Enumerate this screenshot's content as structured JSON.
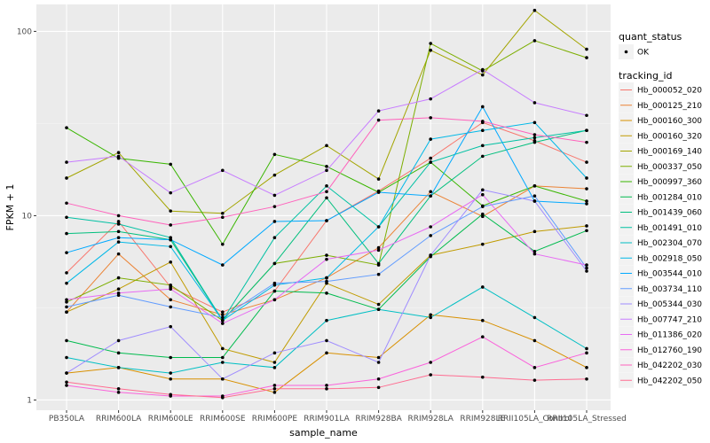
{
  "chart_data": {
    "type": "line",
    "xlabel": "sample_name",
    "ylabel": "FPKM + 1",
    "y_scale": "log10",
    "ylim": [
      0.88,
      140
    ],
    "y_ticks": [
      1,
      10,
      100
    ],
    "y_tick_labels": [
      "1",
      "10",
      "100"
    ],
    "grid": true,
    "background": "#ebebeb",
    "categories": [
      "PB350LA",
      "RRIM600LA",
      "RRIM600LE",
      "RRIM600SE",
      "RRIM600PE",
      "RRIM901LA",
      "RRIM928BA",
      "RRIM928LA",
      "RRIM928LE",
      "RRII105LA_Control",
      "RRII105LA_Stressed"
    ],
    "x_tick_labels": [
      "PB350LA",
      "RRIM600LA",
      "RRIM600LE",
      "RRIM600SE",
      "RRIM600PE",
      "RRIM901LA",
      "RRIM928BA",
      "RRIM928LA",
      "RRIM928LE",
      "RRII105LA_Control",
      "RRII105LA_Stressed"
    ],
    "legend_position": "right",
    "legend": {
      "status_title": "quant_status",
      "status_entries": [
        "OK"
      ],
      "series_title": "tracking_id"
    },
    "series": [
      {
        "name": "Hb_000052_020",
        "color": "#F8766D",
        "values": [
          4.9,
          9.3,
          4.1,
          3.0,
          3.9,
          9.4,
          13.6,
          20.5,
          32.0,
          25.5,
          19.5
        ]
      },
      {
        "name": "Hb_000125_210",
        "color": "#EB8335",
        "values": [
          3.0,
          6.2,
          3.5,
          2.9,
          3.5,
          4.6,
          6.7,
          13.5,
          9.9,
          14.5,
          14.0
        ]
      },
      {
        "name": "Hb_000160_300",
        "color": "#D89000",
        "values": [
          1.4,
          1.5,
          1.3,
          1.3,
          1.1,
          1.8,
          1.7,
          2.9,
          2.7,
          2.1,
          1.5
        ]
      },
      {
        "name": "Hb_000160_320",
        "color": "#C09B00",
        "values": [
          3.0,
          4.0,
          5.6,
          1.9,
          1.6,
          4.3,
          3.3,
          6.1,
          7.0,
          8.2,
          8.8
        ]
      },
      {
        "name": "Hb_000169_140",
        "color": "#A3A500",
        "values": [
          16.0,
          22.0,
          10.6,
          10.3,
          16.6,
          24.0,
          15.8,
          79.0,
          58.0,
          130.0,
          80.0
        ]
      },
      {
        "name": "Hb_000337_050",
        "color": "#7CAE00",
        "values": [
          3.4,
          4.6,
          4.2,
          2.7,
          5.5,
          6.1,
          5.4,
          86.0,
          61.0,
          89.0,
          72.0
        ]
      },
      {
        "name": "Hb_000997_360",
        "color": "#39B600",
        "values": [
          30.0,
          20.5,
          19.0,
          7.0,
          21.5,
          18.5,
          13.4,
          19.5,
          11.3,
          14.5,
          12.0
        ]
      },
      {
        "name": "Hb_001284_010",
        "color": "#00BB4E",
        "values": [
          2.1,
          1.8,
          1.7,
          1.7,
          3.9,
          3.8,
          3.1,
          6.0,
          10.2,
          6.4,
          8.3
        ]
      },
      {
        "name": "Hb_001439_060",
        "color": "#00BF7D",
        "values": [
          8.0,
          8.2,
          7.4,
          2.7,
          5.5,
          12.5,
          5.5,
          12.8,
          21.0,
          25.0,
          29.0
        ]
      },
      {
        "name": "Hb_001491_010",
        "color": "#00C1A3",
        "values": [
          9.8,
          9.0,
          7.6,
          2.7,
          7.6,
          14.5,
          8.7,
          19.5,
          24.0,
          26.5,
          29.0
        ]
      },
      {
        "name": "Hb_002304_070",
        "color": "#00BFC4",
        "values": [
          1.7,
          1.5,
          1.4,
          1.6,
          1.5,
          2.7,
          3.1,
          2.8,
          4.1,
          2.8,
          1.9
        ]
      },
      {
        "name": "Hb_002918_050",
        "color": "#00B8E7",
        "values": [
          4.3,
          7.2,
          6.8,
          2.7,
          4.2,
          4.6,
          8.7,
          26.0,
          29.0,
          32.0,
          16.0
        ]
      },
      {
        "name": "Hb_003544_010",
        "color": "#00A9FF",
        "values": [
          6.3,
          7.6,
          7.4,
          5.4,
          9.3,
          9.4,
          13.4,
          12.8,
          39.0,
          12.0,
          11.6
        ]
      },
      {
        "name": "Hb_003734_110",
        "color": "#619CFF",
        "values": [
          3.2,
          3.7,
          3.2,
          2.8,
          4.3,
          4.4,
          4.8,
          7.8,
          11.2,
          12.8,
          5.2
        ]
      },
      {
        "name": "Hb_005344_030",
        "color": "#9F8CFF",
        "values": [
          1.4,
          2.1,
          2.5,
          1.3,
          1.8,
          2.1,
          1.6,
          6.1,
          13.8,
          12.0,
          5.0
        ]
      },
      {
        "name": "Hb_007747_210",
        "color": "#C77CFF",
        "values": [
          19.5,
          21.0,
          13.3,
          17.6,
          12.9,
          17.6,
          37.0,
          43.0,
          62.0,
          41.0,
          35.0
        ]
      },
      {
        "name": "Hb_011386_020",
        "color": "#E76BF3",
        "values": [
          3.5,
          3.8,
          4.0,
          2.6,
          3.5,
          5.8,
          6.5,
          8.7,
          13.0,
          6.2,
          5.4
        ]
      },
      {
        "name": "Hb_012760_190",
        "color": "#FA62DB",
        "values": [
          1.2,
          1.1,
          1.05,
          1.05,
          1.2,
          1.2,
          1.3,
          1.6,
          2.2,
          1.5,
          1.8
        ]
      },
      {
        "name": "Hb_042202_030",
        "color": "#FF62BC",
        "values": [
          11.7,
          10.0,
          8.9,
          9.8,
          11.2,
          13.5,
          33.0,
          34.0,
          32.5,
          27.5,
          25.0
        ]
      },
      {
        "name": "Hb_042202_050",
        "color": "#FF6C91",
        "values": [
          1.25,
          1.15,
          1.07,
          1.03,
          1.15,
          1.15,
          1.17,
          1.37,
          1.33,
          1.28,
          1.3
        ]
      }
    ]
  }
}
